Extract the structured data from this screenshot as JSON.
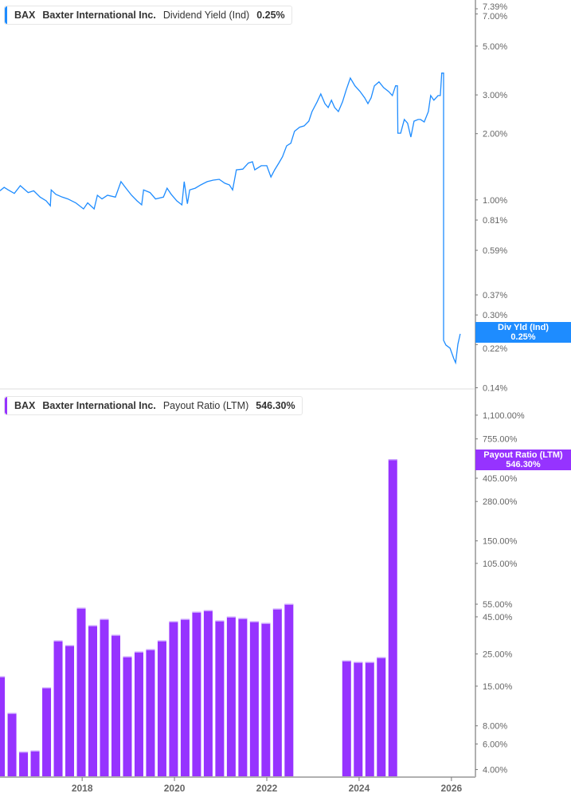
{
  "colors": {
    "yield": "#1e8cff",
    "payout": "#9633ff",
    "axis": "#b0b0b0",
    "text": "#666666"
  },
  "top_legend": {
    "ticker": "BAX",
    "company": "Baxter International Inc.",
    "metric": "Dividend Yield (Ind)",
    "value": "0.25%"
  },
  "bottom_legend": {
    "ticker": "BAX",
    "company": "Baxter International Inc.",
    "metric": "Payout Ratio (LTM)",
    "value": "546.30%"
  },
  "top_tag": {
    "label": "Div Yld (Ind)",
    "value": "0.25%"
  },
  "bottom_tag": {
    "label": "Payout Ratio (LTM)",
    "value": "546.30%"
  },
  "chart_data": [
    {
      "type": "line",
      "series_label": "Dividend Yield (Ind)",
      "y_scale": "log",
      "xlim": [
        2016.22,
        2026.52
      ],
      "ylim": [
        0.136,
        8.1
      ],
      "x_ticks": [
        {
          "v": 2018,
          "label": "2018"
        },
        {
          "v": 2020,
          "label": "2020"
        },
        {
          "v": 2022,
          "label": "2022"
        },
        {
          "v": 2024,
          "label": "2024"
        },
        {
          "v": 2026,
          "label": "2026"
        }
      ],
      "y_ticks": [
        {
          "v": 7.39,
          "label": "7.39%"
        },
        {
          "v": 7.0,
          "label": "7.00%"
        },
        {
          "v": 5.0,
          "label": "5.00%"
        },
        {
          "v": 3.0,
          "label": "3.00%"
        },
        {
          "v": 2.0,
          "label": "2.00%"
        },
        {
          "v": 1.0,
          "label": "1.00%"
        },
        {
          "v": 0.81,
          "label": "0.81%"
        },
        {
          "v": 0.59,
          "label": "0.59%"
        },
        {
          "v": 0.37,
          "label": "0.37%"
        },
        {
          "v": 0.3,
          "label": "0.30%"
        },
        {
          "v": 0.22,
          "label": "0.22%"
        },
        {
          "v": 0.14,
          "label": "0.14%"
        }
      ],
      "x": [
        2016.22,
        2016.31,
        2016.4,
        2016.53,
        2016.66,
        2016.83,
        2016.95,
        2017.09,
        2017.22,
        2017.31,
        2017.33,
        2017.43,
        2017.57,
        2017.69,
        2017.86,
        2018.03,
        2018.12,
        2018.26,
        2018.33,
        2018.43,
        2018.55,
        2018.72,
        2018.84,
        2018.95,
        2019.07,
        2019.19,
        2019.29,
        2019.33,
        2019.47,
        2019.59,
        2019.76,
        2019.84,
        2019.93,
        2020.05,
        2020.16,
        2020.21,
        2020.28,
        2020.33,
        2020.45,
        2020.57,
        2020.71,
        2020.84,
        2020.97,
        2021.09,
        2021.19,
        2021.26,
        2021.34,
        2021.48,
        2021.6,
        2021.69,
        2021.74,
        2021.88,
        2022.0,
        2022.09,
        2022.17,
        2022.26,
        2022.34,
        2022.43,
        2022.52,
        2022.6,
        2022.71,
        2022.81,
        2022.91,
        2022.98,
        2023.09,
        2023.17,
        2023.26,
        2023.33,
        2023.4,
        2023.47,
        2023.55,
        2023.64,
        2023.72,
        2023.81,
        2023.91,
        2024.02,
        2024.12,
        2024.19,
        2024.26,
        2024.33,
        2024.43,
        2024.53,
        2024.64,
        2024.72,
        2024.79,
        2024.83,
        2024.84,
        2024.9,
        2024.98,
        2025.05,
        2025.12,
        2025.19,
        2025.28,
        2025.33,
        2025.41,
        2025.5,
        2025.55,
        2025.62,
        2025.71,
        2025.76,
        2025.79,
        2025.83,
        2025.83,
        2025.88,
        2025.97,
        2026.05,
        2026.09,
        2026.14,
        2026.19
      ],
      "y": [
        1.1,
        1.14,
        1.11,
        1.07,
        1.16,
        1.08,
        1.1,
        1.03,
        0.99,
        0.94,
        1.11,
        1.06,
        1.03,
        1.01,
        0.97,
        0.91,
        0.97,
        0.91,
        1.05,
        1.01,
        1.05,
        1.03,
        1.21,
        1.13,
        1.05,
        0.99,
        0.95,
        1.11,
        1.08,
        1.01,
        1.03,
        1.13,
        1.06,
        0.99,
        0.95,
        1.21,
        0.96,
        1.11,
        1.13,
        1.17,
        1.21,
        1.23,
        1.24,
        1.19,
        1.17,
        1.11,
        1.37,
        1.38,
        1.47,
        1.49,
        1.37,
        1.43,
        1.43,
        1.27,
        1.37,
        1.47,
        1.57,
        1.76,
        1.81,
        2.05,
        2.14,
        2.17,
        2.28,
        2.52,
        2.79,
        3.03,
        2.74,
        2.63,
        2.84,
        2.63,
        2.52,
        2.79,
        3.16,
        3.58,
        3.3,
        3.11,
        2.91,
        2.74,
        2.91,
        3.3,
        3.44,
        3.24,
        3.11,
        2.98,
        3.3,
        3.3,
        2.01,
        2.01,
        2.32,
        2.23,
        1.93,
        2.28,
        2.32,
        2.32,
        2.26,
        2.52,
        2.98,
        2.84,
        2.98,
        2.98,
        3.77,
        3.77,
        0.23,
        0.219,
        0.212,
        0.19,
        0.182,
        0.221,
        0.246
      ]
    },
    {
      "type": "bar",
      "series_label": "Payout Ratio (LTM)",
      "y_scale": "log",
      "xlim": [
        2016.22,
        2026.52
      ],
      "ylim": [
        3.55,
        1625
      ],
      "y_ticks": [
        {
          "v": 1100,
          "label": "1,100.00%"
        },
        {
          "v": 755,
          "label": "755.00%"
        },
        {
          "v": 405,
          "label": "405.00%"
        },
        {
          "v": 280,
          "label": "280.00%"
        },
        {
          "v": 150,
          "label": "150.00%"
        },
        {
          "v": 105,
          "label": "105.00%"
        },
        {
          "v": 55,
          "label": "55.00%"
        },
        {
          "v": 45,
          "label": "45.00%"
        },
        {
          "v": 25,
          "label": "25.00%"
        },
        {
          "v": 15,
          "label": "15.00%"
        },
        {
          "v": 8,
          "label": "8.00%"
        },
        {
          "v": 6,
          "label": "6.00%"
        },
        {
          "v": 4,
          "label": "4.00%"
        }
      ],
      "categories": [
        "2016-Q1",
        "2016-Q2",
        "2016-Q3",
        "2016-Q4",
        "2017-Q1",
        "2017-Q2",
        "2017-Q3",
        "2017-Q4",
        "2018-Q1",
        "2018-Q2",
        "2018-Q3",
        "2018-Q4",
        "2019-Q1",
        "2019-Q2",
        "2019-Q3",
        "2019-Q4",
        "2020-Q1",
        "2020-Q2",
        "2020-Q3",
        "2020-Q4",
        "2021-Q1",
        "2021-Q2",
        "2021-Q3",
        "2021-Q4",
        "2022-Q1",
        "2022-Q2",
        "2023-Q3",
        "2023-Q4",
        "2024-Q1",
        "2024-Q2",
        "2024-Q3"
      ],
      "values": [
        17.5,
        9.8,
        5.3,
        5.4,
        14.7,
        30.9,
        28.7,
        51.9,
        39.3,
        43.5,
        33.8,
        24.0,
        25.9,
        26.9,
        30.9,
        41.9,
        43.5,
        48.7,
        49.9,
        42.4,
        45.1,
        44.0,
        41.9,
        40.8,
        51.2,
        55.2,
        22.5,
        22.0,
        22.0,
        23.7,
        546.3
      ]
    }
  ]
}
